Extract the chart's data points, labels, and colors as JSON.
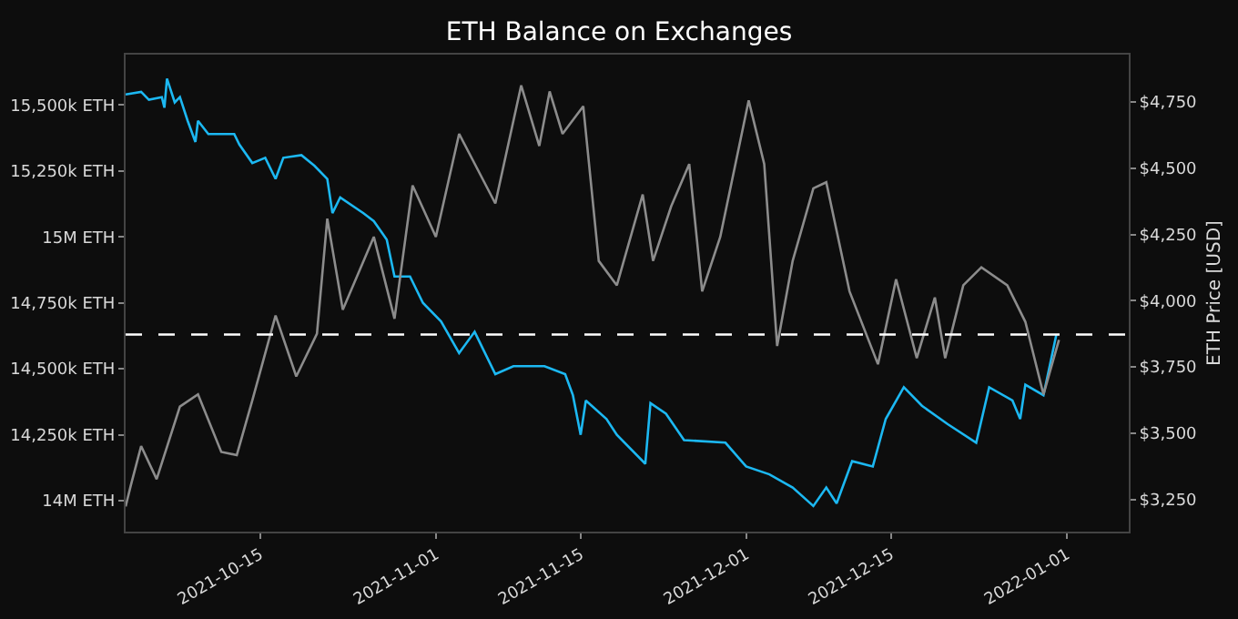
{
  "chart_data": {
    "type": "line",
    "title": "ETH Balance on Exchanges",
    "y2label": "ETH Price [USD]",
    "xlim": [
      "2021-10-02",
      "2022-01-07"
    ],
    "xticks": [
      "2021-10-15",
      "2021-11-01",
      "2021-11-15",
      "2021-12-01",
      "2021-12-15",
      "2022-01-01"
    ],
    "ylim": [
      13883000,
      15691000
    ],
    "yticks": [
      {
        "value": 14000000,
        "label": "14M ETH"
      },
      {
        "value": 14250000,
        "label": "14,250k ETH"
      },
      {
        "value": 14500000,
        "label": "14,500k ETH"
      },
      {
        "value": 14750000,
        "label": "14,750k ETH"
      },
      {
        "value": 15000000,
        "label": "15M ETH"
      },
      {
        "value": 15250000,
        "label": "15,250k ETH"
      },
      {
        "value": 15500000,
        "label": "15,500k ETH"
      }
    ],
    "y2lim": [
      3128,
      4929
    ],
    "y2ticks": [
      {
        "value": 3250,
        "label": "$3,250"
      },
      {
        "value": 3500,
        "label": "$3,500"
      },
      {
        "value": 3750,
        "label": "$3,750"
      },
      {
        "value": 4000,
        "label": "$4,000"
      },
      {
        "value": 4250,
        "label": "$4,250"
      },
      {
        "value": 4500,
        "label": "$4,500"
      },
      {
        "value": 4750,
        "label": "$4,750"
      }
    ],
    "grid": false,
    "legend": false,
    "marker": "none",
    "ref_lines": [
      {
        "axis": "y",
        "value": 14630000,
        "color": "#ffffff",
        "line_style": "dashed"
      }
    ],
    "series": [
      {
        "color": "#8c8c8c",
        "axis": "y2",
        "x": [
          "2021-10-02",
          "2021-10-02T12:00",
          "2021-10-03T12:00",
          "2021-10-05",
          "2021-10-07T06:00",
          "2021-10-09",
          "2021-10-11T06:00",
          "2021-10-12T18:00",
          "2021-10-14T06:00",
          "2021-10-16T12:00",
          "2021-10-18T12:00",
          "2021-10-20T12:00",
          "2021-10-21T12:00",
          "2021-10-23",
          "2021-10-26",
          "2021-10-28",
          "2021-10-29T18:00",
          "2021-11-01",
          "2021-11-03T06:00",
          "2021-11-06T18:00",
          "2021-11-09T06:00",
          "2021-11-11",
          "2021-11-12",
          "2021-11-13T06:00",
          "2021-11-15T06:00",
          "2021-11-16T18:00",
          "2021-11-18T12:00",
          "2021-11-21",
          "2021-11-22",
          "2021-11-23T18:00",
          "2021-11-25T12:00",
          "2021-11-26T18:00",
          "2021-11-28T12:00",
          "2021-12-01T06:00",
          "2021-12-02T18:00",
          "2021-12-04",
          "2021-12-05T12:00",
          "2021-12-07T12:00",
          "2021-12-08T18:00",
          "2021-12-11",
          "2021-12-13T18:00",
          "2021-12-15T12:00",
          "2021-12-17T12:00",
          "2021-12-19T06:00",
          "2021-12-20T06:00",
          "2021-12-22",
          "2021-12-23T18:00",
          "2021-12-26T06:00",
          "2021-12-28",
          "2021-12-29T18:00",
          "2021-12-31T06:00"
        ],
        "values": [
          3223,
          3302,
          3451,
          3326,
          3600,
          3646,
          3429,
          3417,
          3623,
          3944,
          3714,
          3875,
          4310,
          3966,
          4241,
          3932,
          4435,
          4241,
          4630,
          4367,
          4813,
          4584,
          4790,
          4630,
          4734,
          4150,
          4058,
          4401,
          4150,
          4356,
          4516,
          4035,
          4241,
          4756,
          4516,
          3829,
          4150,
          4424,
          4447,
          4035,
          3760,
          4081,
          3783,
          4012,
          3783,
          4058,
          4126,
          4058,
          3920,
          3646,
          3852
        ]
      },
      {
        "color": "#1cb8f2",
        "axis": "y",
        "x": [
          "2021-10-02",
          "2021-10-03T12:00",
          "2021-10-04T06:00",
          "2021-10-05T12:00",
          "2021-10-05T18:00",
          "2021-10-06",
          "2021-10-06T18:00",
          "2021-10-07T06:00",
          "2021-10-08",
          "2021-10-08T18:00",
          "2021-10-09",
          "2021-10-10",
          "2021-10-12T12:00",
          "2021-10-13",
          "2021-10-14T06:00",
          "2021-10-15T12:00",
          "2021-10-16T12:00",
          "2021-10-17T06:00",
          "2021-10-19",
          "2021-10-20T06:00",
          "2021-10-21T12:00",
          "2021-10-22",
          "2021-10-22T18:00",
          "2021-10-25",
          "2021-10-26",
          "2021-10-27T06:00",
          "2021-10-28",
          "2021-10-29T12:00",
          "2021-10-30T18:00",
          "2021-11-01T12:00",
          "2021-11-03T06:00",
          "2021-11-04T18:00",
          "2021-11-06T18:00",
          "2021-11-08T12:00",
          "2021-11-11T12:00",
          "2021-11-13T12:00",
          "2021-11-14T06:00",
          "2021-11-15",
          "2021-11-15T12:00",
          "2021-11-17T12:00",
          "2021-11-18T12:00",
          "2021-11-21T06:00",
          "2021-11-21T18:00",
          "2021-11-23T06:00",
          "2021-11-25",
          "2021-11-29",
          "2021-12-01",
          "2021-12-03T06:00",
          "2021-12-05T12:00",
          "2021-12-07T12:00",
          "2021-12-08T18:00",
          "2021-12-09T18:00",
          "2021-12-11T06:00",
          "2021-12-13T06:00",
          "2021-12-14T12:00",
          "2021-12-16T06:00",
          "2021-12-18",
          "2021-12-20T12:00",
          "2021-12-23T06:00",
          "2021-12-24T12:00",
          "2021-12-26T18:00",
          "2021-12-27T12:00",
          "2021-12-28",
          "2021-12-29T18:00",
          "2021-12-31"
        ],
        "values": [
          15540000,
          15550000,
          15520000,
          15530000,
          15490000,
          15600000,
          15510000,
          15530000,
          15440000,
          15360000,
          15440000,
          15390000,
          15390000,
          15350000,
          15280000,
          15300000,
          15220000,
          15300000,
          15310000,
          15270000,
          15220000,
          15090000,
          15150000,
          15090000,
          15060000,
          14990000,
          14850000,
          14850000,
          14750000,
          14680000,
          14560000,
          14640000,
          14480000,
          14510000,
          14510000,
          14480000,
          14400000,
          14250000,
          14380000,
          14310000,
          14250000,
          14140000,
          14370000,
          14330000,
          14230000,
          14220000,
          14130000,
          14100000,
          14050000,
          13980000,
          14050000,
          13990000,
          14150000,
          14130000,
          14310000,
          14430000,
          14360000,
          14290000,
          14220000,
          14430000,
          14380000,
          14310000,
          14440000,
          14400000,
          14630000
        ]
      }
    ]
  }
}
